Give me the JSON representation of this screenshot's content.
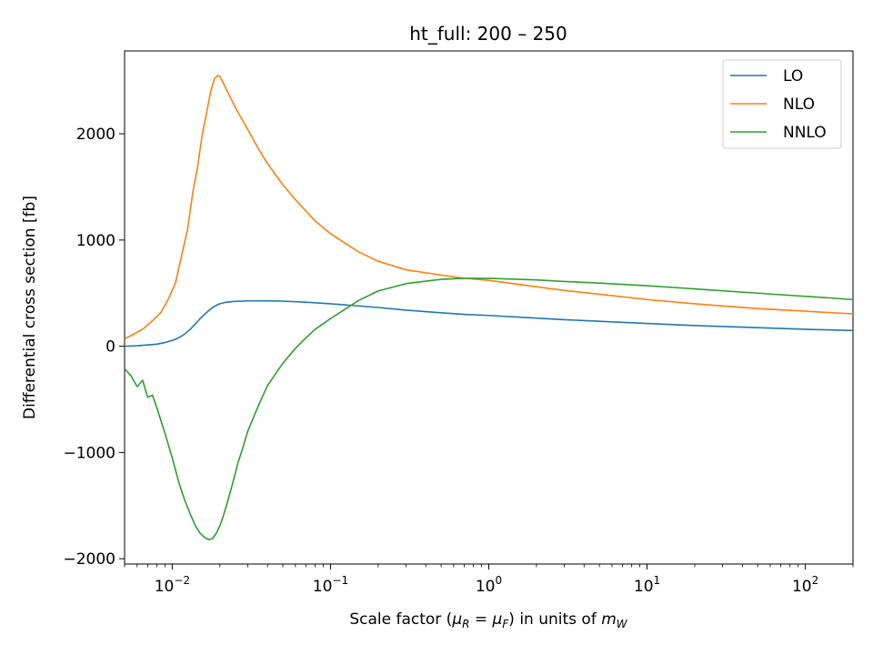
{
  "chart_data": {
    "type": "line",
    "title": "ht_full: 200 – 250",
    "xlabel": {
      "prefix": "Scale factor (",
      "mu": "μ",
      "sub_r": "R",
      "eq": " = ",
      "sub_f": "F",
      "suffix": ") in units of ",
      "m": "m",
      "sub_w": "W"
    },
    "ylabel": "Differential cross section [fb]",
    "xscale": "log",
    "xlim": [
      0.005,
      200
    ],
    "ylim": [
      -2050,
      2780
    ],
    "x_ticks": [
      {
        "value": 0.01,
        "base": "10",
        "exp": "−2"
      },
      {
        "value": 0.1,
        "base": "10",
        "exp": "−1"
      },
      {
        "value": 1,
        "base": "10",
        "exp": "0"
      },
      {
        "value": 10,
        "base": "10",
        "exp": "1"
      },
      {
        "value": 100,
        "base": "10",
        "exp": "2"
      }
    ],
    "y_ticks": [
      {
        "value": 2000,
        "label": "2000"
      },
      {
        "value": 1000,
        "label": "1000"
      },
      {
        "value": 0,
        "label": "0"
      },
      {
        "value": -1000,
        "label": "−1000"
      },
      {
        "value": -2000,
        "label": "−2000"
      }
    ],
    "grid": false,
    "legend_position": "top-right",
    "series": [
      {
        "name": "LO",
        "color": "#1f77b4",
        "x": [
          0.005,
          0.006,
          0.007,
          0.008,
          0.009,
          0.01,
          0.011,
          0.012,
          0.013,
          0.014,
          0.015,
          0.016,
          0.017,
          0.018,
          0.019,
          0.02,
          0.022,
          0.025,
          0.03,
          0.04,
          0.05,
          0.07,
          0.1,
          0.15,
          0.2,
          0.3,
          0.5,
          0.7,
          1,
          2,
          3,
          5,
          10,
          20,
          50,
          100,
          200
        ],
        "y": [
          0,
          5,
          12,
          20,
          35,
          55,
          80,
          115,
          160,
          210,
          260,
          300,
          335,
          365,
          385,
          400,
          415,
          422,
          427,
          428,
          425,
          415,
          400,
          380,
          365,
          340,
          315,
          300,
          290,
          265,
          250,
          235,
          215,
          195,
          175,
          160,
          148
        ]
      },
      {
        "name": "NLO",
        "color": "#ff7f0e",
        "x": [
          0.005,
          0.0058,
          0.0065,
          0.0075,
          0.0085,
          0.0095,
          0.0105,
          0.0115,
          0.0125,
          0.0135,
          0.0145,
          0.0155,
          0.0165,
          0.0175,
          0.0185,
          0.0195,
          0.02,
          0.021,
          0.023,
          0.025,
          0.03,
          0.035,
          0.04,
          0.05,
          0.06,
          0.08,
          0.1,
          0.15,
          0.2,
          0.3,
          0.5,
          0.7,
          1,
          2,
          3,
          5,
          10,
          20,
          50,
          100,
          200
        ],
        "y": [
          70,
          120,
          160,
          240,
          320,
          450,
          600,
          860,
          1100,
          1450,
          1700,
          2000,
          2200,
          2400,
          2520,
          2550,
          2540,
          2480,
          2360,
          2250,
          2040,
          1860,
          1720,
          1520,
          1380,
          1180,
          1060,
          890,
          800,
          720,
          670,
          640,
          620,
          560,
          525,
          490,
          440,
          400,
          355,
          330,
          305
        ]
      },
      {
        "name": "NNLO",
        "color": "#2ca02c",
        "x": [
          0.005,
          0.0055,
          0.006,
          0.0065,
          0.007,
          0.0075,
          0.008,
          0.009,
          0.01,
          0.011,
          0.012,
          0.013,
          0.014,
          0.015,
          0.016,
          0.017,
          0.018,
          0.019,
          0.02,
          0.021,
          0.022,
          0.024,
          0.026,
          0.028,
          0.03,
          0.035,
          0.04,
          0.05,
          0.06,
          0.07,
          0.08,
          0.1,
          0.15,
          0.2,
          0.3,
          0.5,
          0.7,
          1,
          2,
          3,
          5,
          10,
          20,
          50,
          100,
          200
        ],
        "y": [
          -210,
          -280,
          -380,
          -320,
          -480,
          -460,
          -580,
          -820,
          -1050,
          -1280,
          -1450,
          -1580,
          -1690,
          -1760,
          -1800,
          -1820,
          -1810,
          -1760,
          -1690,
          -1600,
          -1500,
          -1300,
          -1100,
          -950,
          -800,
          -560,
          -370,
          -160,
          -20,
          80,
          160,
          260,
          430,
          520,
          590,
          630,
          640,
          640,
          625,
          610,
          595,
          570,
          540,
          500,
          470,
          440
        ]
      }
    ]
  }
}
